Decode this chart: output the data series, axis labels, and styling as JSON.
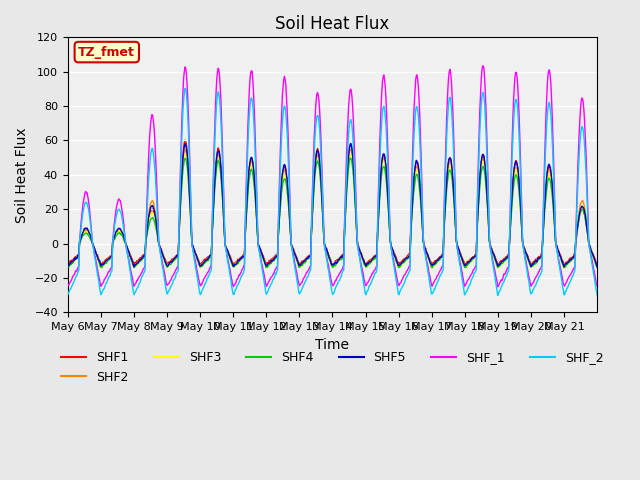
{
  "title": "Soil Heat Flux",
  "ylabel": "Soil Heat Flux",
  "xlabel": "Time",
  "ylim": [
    -40,
    120
  ],
  "series": [
    "SHF1",
    "SHF2",
    "SHF3",
    "SHF4",
    "SHF5",
    "SHF_1",
    "SHF_2"
  ],
  "colors": {
    "SHF1": "#ff0000",
    "SHF2": "#ff8800",
    "SHF3": "#ffff00",
    "SHF4": "#00cc00",
    "SHF5": "#0000cc",
    "SHF_1": "#ff00ff",
    "SHF_2": "#00ccff"
  },
  "annotation_text": "TZ_fmet",
  "annotation_color": "#cc0000",
  "annotation_bg": "#ffffcc",
  "background_color": "#e8e8e8",
  "plot_bg": "#f0f0f0",
  "tick_labels": [
    "May 6",
    "May 7",
    "May 8",
    "May 9",
    "May 10",
    "May 11",
    "May 12",
    "May 13",
    "May 14",
    "May 15",
    "May 16",
    "May 17",
    "May 18",
    "May 19",
    "May 20",
    "May 21"
  ],
  "n_days": 16,
  "pts_per_day": 48,
  "day_amps_shf1": [
    8,
    8,
    20,
    60,
    55,
    50,
    45,
    55,
    58,
    52,
    48,
    50,
    52,
    48,
    45,
    20
  ],
  "day_amps_shf2": [
    8,
    8,
    25,
    55,
    52,
    48,
    43,
    52,
    55,
    50,
    45,
    48,
    50,
    45,
    43,
    25
  ],
  "day_amps_shf3": [
    7,
    7,
    18,
    52,
    50,
    45,
    40,
    50,
    52,
    48,
    43,
    45,
    48,
    43,
    40,
    22
  ],
  "day_amps_shf4": [
    6,
    6,
    15,
    50,
    48,
    43,
    38,
    48,
    50,
    45,
    40,
    43,
    45,
    40,
    38,
    20
  ],
  "day_amps_shf5": [
    9,
    9,
    22,
    58,
    54,
    50,
    46,
    54,
    58,
    52,
    48,
    50,
    52,
    48,
    46,
    22
  ],
  "day_amps_shf_1": [
    30,
    26,
    75,
    103,
    102,
    101,
    97,
    88,
    90,
    98,
    98,
    101,
    104,
    100,
    101,
    85
  ],
  "day_amps_shf_2": [
    24,
    20,
    55,
    90,
    88,
    85,
    80,
    75,
    72,
    80,
    80,
    85,
    88,
    84,
    82,
    68
  ]
}
